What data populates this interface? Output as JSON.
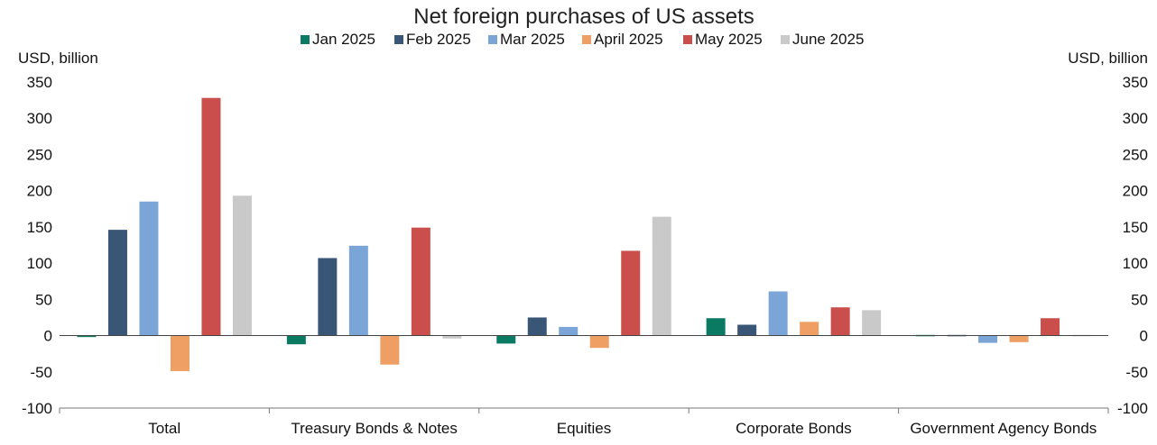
{
  "chart_data": {
    "type": "bar",
    "title": "Net foreign purchases of US assets",
    "ylabel_left": "USD, billion",
    "ylabel_right": "USD, billion",
    "ylim": [
      -100,
      350
    ],
    "yticks": [
      -100,
      -50,
      0,
      50,
      100,
      150,
      200,
      250,
      300,
      350
    ],
    "ytick_labels": [
      "-100",
      "-50",
      "0",
      "50",
      "100",
      "150",
      "200",
      "250",
      "300",
      "350"
    ],
    "legend_position": "top-center",
    "grid": false,
    "categories": [
      "Total",
      "Treasury Bonds & Notes",
      "Equities",
      "Corporate Bonds",
      "Government Agency Bonds"
    ],
    "series": [
      {
        "name": "Jan 2025",
        "color": "#0b7a62",
        "values": [
          -2,
          -12,
          -11,
          24,
          0
        ]
      },
      {
        "name": "Feb 2025",
        "color": "#3a5677",
        "values": [
          146,
          107,
          25,
          15,
          -1
        ]
      },
      {
        "name": "Mar 2025",
        "color": "#7ba5d6",
        "values": [
          185,
          124,
          12,
          61,
          -10
        ]
      },
      {
        "name": "April 2025",
        "color": "#ef9f63",
        "values": [
          -49,
          -40,
          -17,
          19,
          -9
        ]
      },
      {
        "name": "May 2025",
        "color": "#c94e4c",
        "values": [
          328,
          149,
          117,
          39,
          24
        ]
      },
      {
        "name": "June 2025",
        "color": "#c9c9c9",
        "values": [
          193,
          -4,
          164,
          35,
          0
        ]
      }
    ]
  }
}
